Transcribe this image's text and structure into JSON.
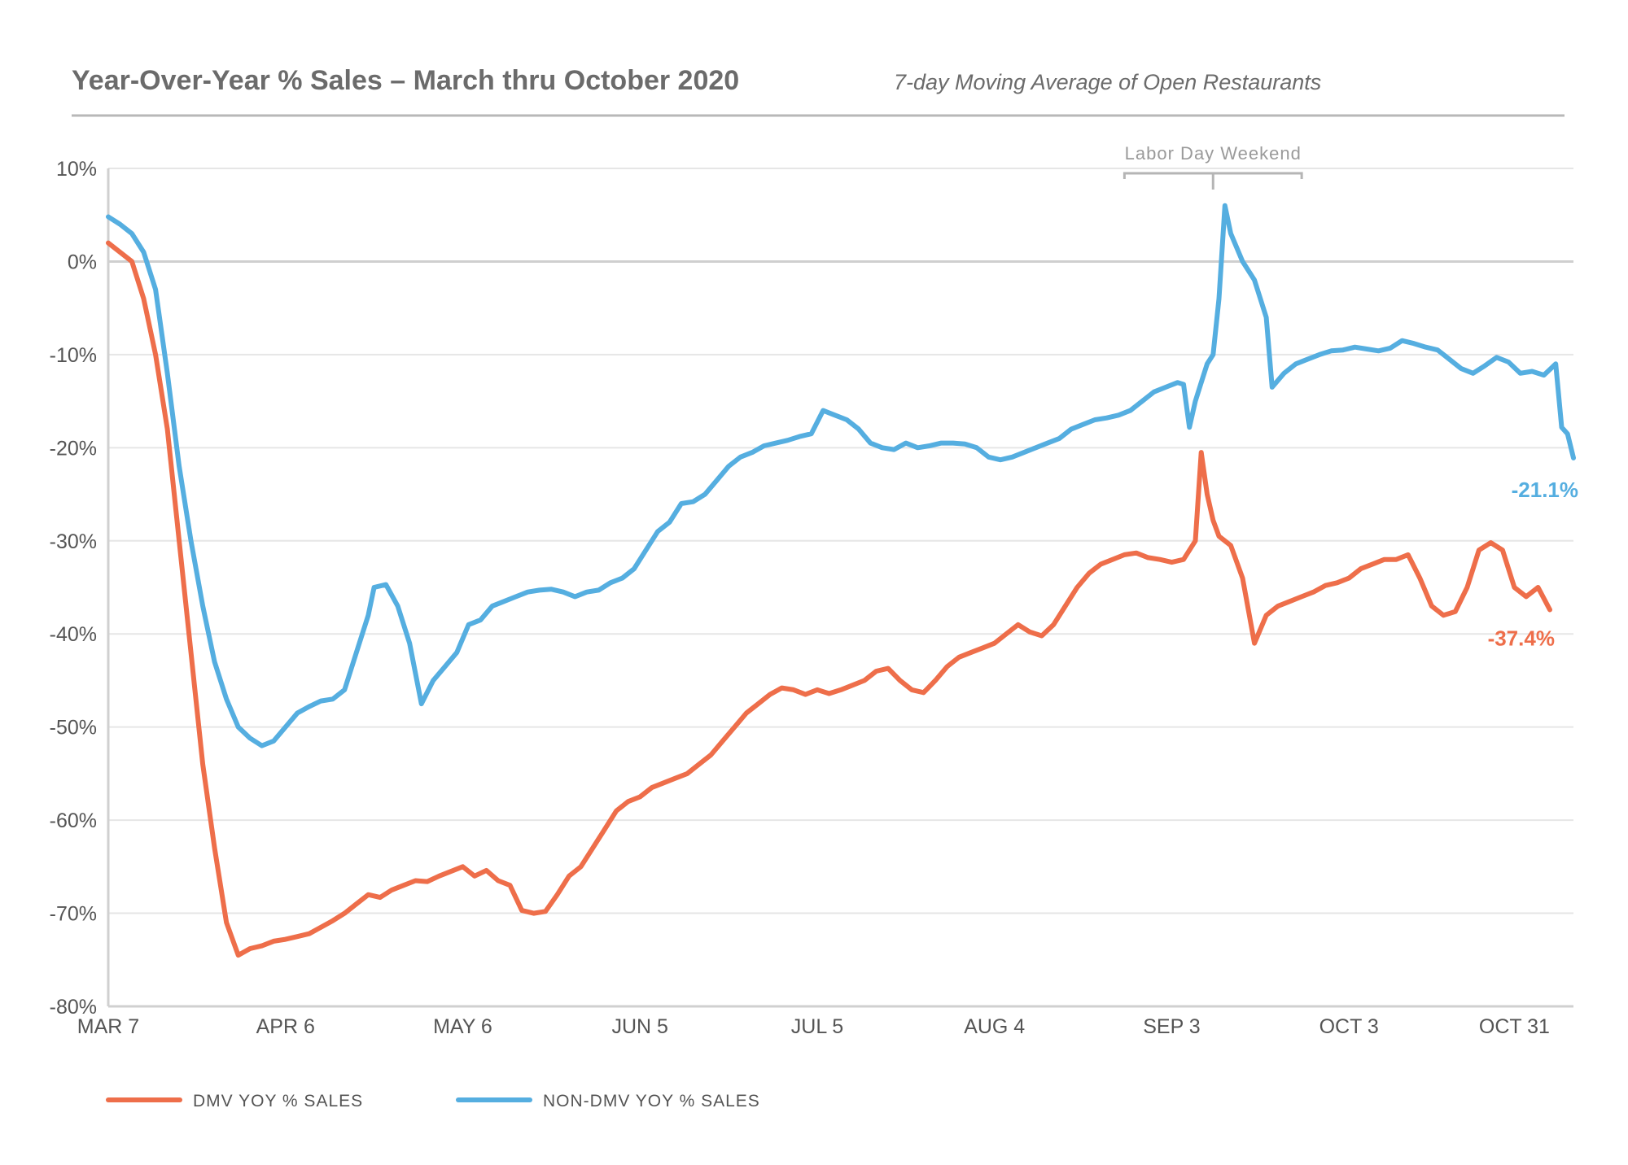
{
  "chart_data": {
    "type": "line",
    "title": "Year-Over-Year % Sales – March thru October 2020",
    "subtitle": "7-day Moving Average of Open Restaurants",
    "ylim": [
      -80,
      10
    ],
    "y_ticks": [
      10,
      0,
      -10,
      -20,
      -30,
      -40,
      -50,
      -60,
      -70,
      -80
    ],
    "y_tick_labels": [
      "10%",
      "0%",
      "-10%",
      "-20%",
      "-30%",
      "-40%",
      "-50%",
      "-60%",
      "-70%",
      "-80%"
    ],
    "x_tick_labels": [
      "MAR 7",
      "APR 6",
      "MAY 6",
      "JUN 5",
      "JUL 5",
      "AUG 4",
      "SEP 3",
      "OCT 3",
      "OCT 31"
    ],
    "x_tick_days": [
      0,
      30,
      60,
      90,
      120,
      150,
      180,
      210,
      238
    ],
    "grid": true,
    "legend_position": "bottom-left",
    "annotation": {
      "text": "Labor Day Weekend",
      "from_day": 172,
      "to_day": 202,
      "peak_day": 187
    },
    "series": [
      {
        "name": "DMV YOY % SALES",
        "color": "#ee6e4a",
        "end_label": "-37.4%",
        "points": [
          [
            0,
            2
          ],
          [
            2,
            1
          ],
          [
            4,
            0
          ],
          [
            6,
            -4
          ],
          [
            8,
            -10
          ],
          [
            10,
            -18
          ],
          [
            12,
            -30
          ],
          [
            14,
            -42
          ],
          [
            16,
            -54
          ],
          [
            18,
            -63
          ],
          [
            20,
            -71
          ],
          [
            22,
            -74.5
          ],
          [
            24,
            -73.8
          ],
          [
            26,
            -73.5
          ],
          [
            28,
            -73
          ],
          [
            30,
            -72.8
          ],
          [
            32,
            -72.5
          ],
          [
            34,
            -72.2
          ],
          [
            36,
            -71.5
          ],
          [
            38,
            -70.8
          ],
          [
            40,
            -70
          ],
          [
            42,
            -69
          ],
          [
            44,
            -68
          ],
          [
            46,
            -68.3
          ],
          [
            48,
            -67.5
          ],
          [
            50,
            -67
          ],
          [
            52,
            -66.5
          ],
          [
            54,
            -66.6
          ],
          [
            56,
            -66
          ],
          [
            58,
            -65.5
          ],
          [
            60,
            -65
          ],
          [
            62,
            -66
          ],
          [
            64,
            -65.4
          ],
          [
            66,
            -66.5
          ],
          [
            68,
            -67
          ],
          [
            70,
            -69.7
          ],
          [
            72,
            -70
          ],
          [
            74,
            -69.8
          ],
          [
            76,
            -68
          ],
          [
            78,
            -66
          ],
          [
            80,
            -65
          ],
          [
            82,
            -63
          ],
          [
            84,
            -61
          ],
          [
            86,
            -59
          ],
          [
            88,
            -58
          ],
          [
            90,
            -57.5
          ],
          [
            92,
            -56.5
          ],
          [
            94,
            -56
          ],
          [
            96,
            -55.5
          ],
          [
            98,
            -55
          ],
          [
            100,
            -54
          ],
          [
            102,
            -53
          ],
          [
            104,
            -51.5
          ],
          [
            106,
            -50
          ],
          [
            108,
            -48.5
          ],
          [
            110,
            -47.5
          ],
          [
            112,
            -46.5
          ],
          [
            114,
            -45.8
          ],
          [
            116,
            -46
          ],
          [
            118,
            -46.5
          ],
          [
            120,
            -46
          ],
          [
            122,
            -46.4
          ],
          [
            124,
            -46
          ],
          [
            126,
            -45.5
          ],
          [
            128,
            -45
          ],
          [
            130,
            -44
          ],
          [
            132,
            -43.7
          ],
          [
            134,
            -45
          ],
          [
            136,
            -46
          ],
          [
            138,
            -46.3
          ],
          [
            140,
            -45
          ],
          [
            142,
            -43.5
          ],
          [
            144,
            -42.5
          ],
          [
            146,
            -42
          ],
          [
            148,
            -41.5
          ],
          [
            150,
            -41
          ],
          [
            152,
            -40
          ],
          [
            154,
            -39
          ],
          [
            156,
            -39.8
          ],
          [
            158,
            -40.2
          ],
          [
            160,
            -39
          ],
          [
            162,
            -37
          ],
          [
            164,
            -35
          ],
          [
            166,
            -33.5
          ],
          [
            168,
            -32.5
          ],
          [
            170,
            -32
          ],
          [
            172,
            -31.5
          ],
          [
            174,
            -31.3
          ],
          [
            176,
            -31.8
          ],
          [
            178,
            -32
          ],
          [
            180,
            -32.3
          ],
          [
            182,
            -32
          ],
          [
            184,
            -30
          ],
          [
            185,
            -20.5
          ],
          [
            186,
            -25
          ],
          [
            187,
            -27.8
          ],
          [
            188,
            -29.5
          ],
          [
            190,
            -30.5
          ],
          [
            192,
            -34
          ],
          [
            194,
            -41
          ],
          [
            196,
            -38
          ],
          [
            198,
            -37
          ],
          [
            200,
            -36.5
          ],
          [
            202,
            -36
          ],
          [
            204,
            -35.5
          ],
          [
            206,
            -34.8
          ],
          [
            208,
            -34.5
          ],
          [
            210,
            -34
          ],
          [
            212,
            -33
          ],
          [
            214,
            -32.5
          ],
          [
            216,
            -32
          ],
          [
            218,
            -32
          ],
          [
            220,
            -31.5
          ],
          [
            222,
            -34
          ],
          [
            224,
            -37
          ],
          [
            226,
            -38
          ],
          [
            228,
            -37.6
          ],
          [
            230,
            -35
          ],
          [
            232,
            -31
          ],
          [
            234,
            -30.2
          ],
          [
            236,
            -31
          ],
          [
            238,
            -35
          ],
          [
            240,
            -36
          ],
          [
            242,
            -35
          ],
          [
            244,
            -37.4
          ]
        ]
      },
      {
        "name": "NON-DMV YOY % SALES",
        "color": "#55aee0",
        "end_label": "-21.1%",
        "points": [
          [
            0,
            4.8
          ],
          [
            2,
            4
          ],
          [
            4,
            3
          ],
          [
            6,
            1
          ],
          [
            8,
            -3
          ],
          [
            10,
            -12
          ],
          [
            12,
            -22
          ],
          [
            14,
            -30
          ],
          [
            16,
            -37
          ],
          [
            18,
            -43
          ],
          [
            20,
            -47
          ],
          [
            22,
            -50
          ],
          [
            24,
            -51.2
          ],
          [
            26,
            -52
          ],
          [
            28,
            -51.5
          ],
          [
            30,
            -50
          ],
          [
            32,
            -48.5
          ],
          [
            34,
            -47.8
          ],
          [
            36,
            -47.2
          ],
          [
            38,
            -47
          ],
          [
            40,
            -46
          ],
          [
            42,
            -42
          ],
          [
            44,
            -38
          ],
          [
            45,
            -35
          ],
          [
            47,
            -34.7
          ],
          [
            49,
            -37
          ],
          [
            51,
            -41
          ],
          [
            53,
            -47.5
          ],
          [
            55,
            -45
          ],
          [
            57,
            -43.5
          ],
          [
            59,
            -42
          ],
          [
            61,
            -39
          ],
          [
            63,
            -38.5
          ],
          [
            65,
            -37
          ],
          [
            67,
            -36.5
          ],
          [
            69,
            -36
          ],
          [
            71,
            -35.5
          ],
          [
            73,
            -35.3
          ],
          [
            75,
            -35.2
          ],
          [
            77,
            -35.5
          ],
          [
            79,
            -36
          ],
          [
            81,
            -35.5
          ],
          [
            83,
            -35.3
          ],
          [
            85,
            -34.5
          ],
          [
            87,
            -34
          ],
          [
            89,
            -33
          ],
          [
            91,
            -31
          ],
          [
            93,
            -29
          ],
          [
            95,
            -28
          ],
          [
            97,
            -26
          ],
          [
            99,
            -25.8
          ],
          [
            101,
            -25
          ],
          [
            103,
            -23.5
          ],
          [
            105,
            -22
          ],
          [
            107,
            -21
          ],
          [
            109,
            -20.5
          ],
          [
            111,
            -19.8
          ],
          [
            113,
            -19.5
          ],
          [
            115,
            -19.2
          ],
          [
            117,
            -18.8
          ],
          [
            119,
            -18.5
          ],
          [
            121,
            -16
          ],
          [
            123,
            -16.5
          ],
          [
            125,
            -17
          ],
          [
            127,
            -18
          ],
          [
            129,
            -19.5
          ],
          [
            131,
            -20
          ],
          [
            133,
            -20.2
          ],
          [
            135,
            -19.5
          ],
          [
            137,
            -20
          ],
          [
            139,
            -19.8
          ],
          [
            141,
            -19.5
          ],
          [
            143,
            -19.5
          ],
          [
            145,
            -19.6
          ],
          [
            147,
            -20
          ],
          [
            149,
            -21
          ],
          [
            151,
            -21.3
          ],
          [
            153,
            -21
          ],
          [
            155,
            -20.5
          ],
          [
            157,
            -20
          ],
          [
            159,
            -19.5
          ],
          [
            161,
            -19
          ],
          [
            163,
            -18
          ],
          [
            165,
            -17.5
          ],
          [
            167,
            -17
          ],
          [
            169,
            -16.8
          ],
          [
            171,
            -16.5
          ],
          [
            173,
            -16
          ],
          [
            175,
            -15
          ],
          [
            177,
            -14
          ],
          [
            179,
            -13.5
          ],
          [
            181,
            -13
          ],
          [
            182,
            -13.2
          ],
          [
            183,
            -17.8
          ],
          [
            184,
            -15
          ],
          [
            185,
            -13
          ],
          [
            186,
            -11
          ],
          [
            187,
            -10
          ],
          [
            188,
            -4
          ],
          [
            189,
            6
          ],
          [
            190,
            3
          ],
          [
            192,
            0
          ],
          [
            194,
            -2
          ],
          [
            196,
            -6
          ],
          [
            197,
            -13.5
          ],
          [
            199,
            -12
          ],
          [
            201,
            -11
          ],
          [
            203,
            -10.5
          ],
          [
            205,
            -10
          ],
          [
            207,
            -9.6
          ],
          [
            209,
            -9.5
          ],
          [
            211,
            -9.2
          ],
          [
            213,
            -9.4
          ],
          [
            215,
            -9.6
          ],
          [
            217,
            -9.3
          ],
          [
            219,
            -8.5
          ],
          [
            221,
            -8.8
          ],
          [
            223,
            -9.2
          ],
          [
            225,
            -9.5
          ],
          [
            227,
            -10.5
          ],
          [
            229,
            -11.5
          ],
          [
            231,
            -12
          ],
          [
            233,
            -11.2
          ],
          [
            235,
            -10.3
          ],
          [
            237,
            -10.8
          ],
          [
            239,
            -12
          ],
          [
            241,
            -11.8
          ],
          [
            243,
            -12.2
          ],
          [
            245,
            -11
          ],
          [
            246,
            -17.8
          ],
          [
            247,
            -18.5
          ],
          [
            248,
            -21.1
          ]
        ]
      }
    ]
  }
}
